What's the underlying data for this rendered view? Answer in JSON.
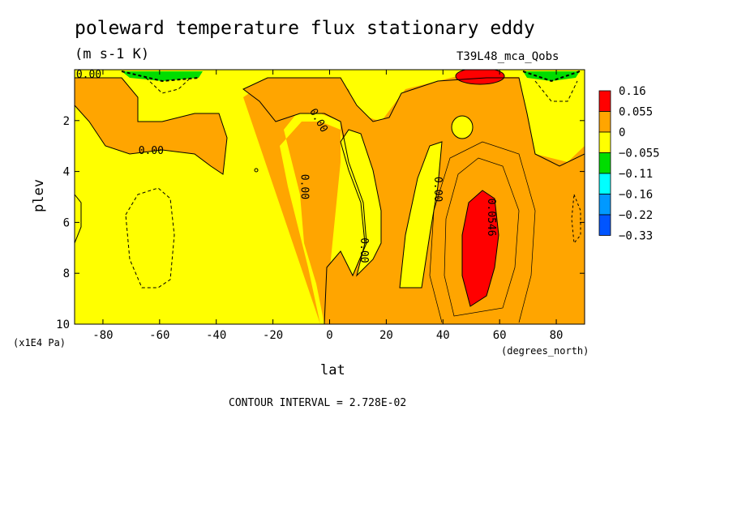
{
  "chart_data": {
    "type": "heatmap",
    "title": "poleward temperature flux stationary eddy",
    "units": "(m s-1 K)",
    "run": "T39L48_mca_Qobs",
    "xlabel": "lat",
    "xunit": "(degrees_north)",
    "ylabel": "plev",
    "yunit": "(x1E4 Pa)",
    "xlim": [
      -90,
      90
    ],
    "ylim": [
      10,
      0
    ],
    "xticks": [
      -80,
      -60,
      -40,
      -20,
      0,
      20,
      40,
      60,
      80
    ],
    "yticks": [
      2,
      4,
      6,
      8,
      10
    ],
    "contour_interval": "CONTOUR INTERVAL = 2.728E-02",
    "colorbar": {
      "levels": [
        "0.16",
        "0.055",
        "0",
        "−0.055",
        "−0.11",
        "−0.16",
        "−0.22",
        "−0.33"
      ],
      "colors": [
        "#ff0000",
        "#ffa500",
        "#ffff00",
        "#00dd00",
        "#00ffff",
        "#0099ff",
        "#0055ff"
      ]
    },
    "contour_labels": [
      {
        "text": "0.00",
        "lat": -85,
        "plev": 0.2
      },
      {
        "text": "0.00",
        "lat": -63,
        "plev": 3.2
      },
      {
        "text": "0.00",
        "lat": -4,
        "plev": 2.0
      },
      {
        "text": "0.00",
        "lat": -9,
        "plev": 4.6
      },
      {
        "text": "0.00",
        "lat": 12,
        "plev": 7.1
      },
      {
        "text": "0.00",
        "lat": 38,
        "plev": 4.7
      },
      {
        "text": "0.0546",
        "lat": 57,
        "plev": 5.8
      }
    ]
  }
}
